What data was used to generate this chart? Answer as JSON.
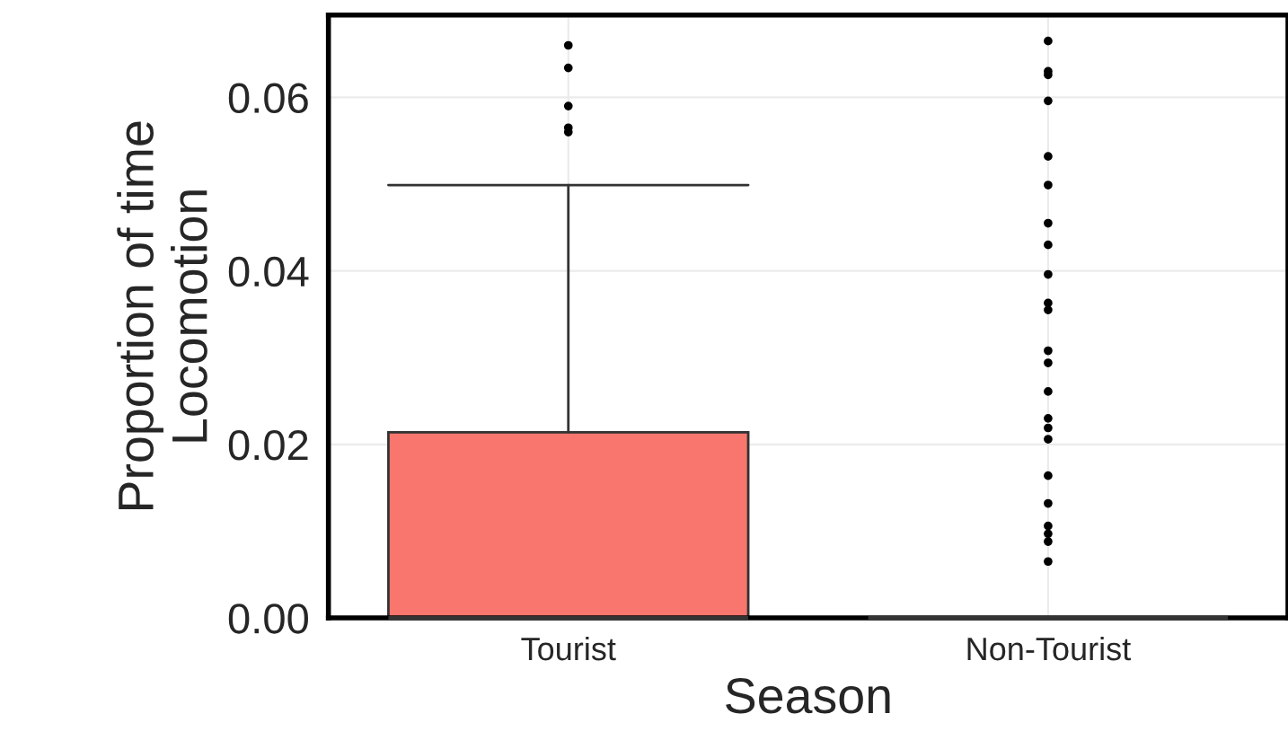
{
  "chart_data": {
    "type": "box",
    "xlabel": "Season",
    "ylabel": "Proportion of time\nLocomotion",
    "categories": [
      "Tourist",
      "Non-Tourist"
    ],
    "series": [
      {
        "color": "#f8766d",
        "boxes": [
          {
            "low": 0,
            "q1": 0,
            "median": 0,
            "q3": 0.0214,
            "high": 0.0499,
            "outliers": [
              0.066,
              0.0634,
              0.059,
              0.0565,
              0.056
            ]
          },
          {
            "low": 0,
            "q1": 0,
            "median": 0,
            "q3": 0,
            "high": 0,
            "outliers": [
              0.0665,
              0.063,
              0.0626,
              0.0596,
              0.0532,
              0.0499,
              0.0455,
              0.043,
              0.0396,
              0.0363,
              0.0355,
              0.0308,
              0.0294,
              0.0261,
              0.023,
              0.0219,
              0.0206,
              0.0164,
              0.0132,
              0.0106,
              0.0097,
              0.0088,
              0.0065
            ]
          }
        ]
      }
    ],
    "ylim": [
      0,
      0.0695
    ],
    "yticks": [
      {
        "value": 0,
        "label": "0.00"
      },
      {
        "value": 0.02,
        "label": "0.02"
      },
      {
        "value": 0.04,
        "label": "0.04"
      },
      {
        "value": 0.06,
        "label": "0.06"
      }
    ],
    "grid": true,
    "legend": false
  }
}
